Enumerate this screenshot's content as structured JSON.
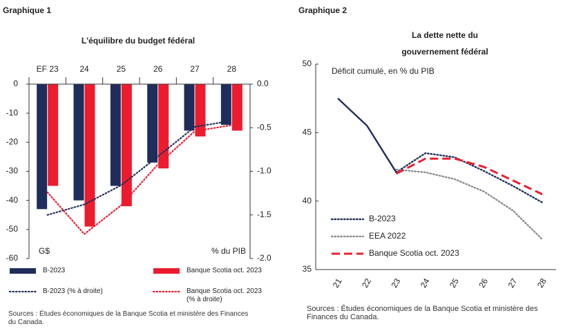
{
  "chart_data": [
    {
      "type": "bar",
      "label": "Graphique 1",
      "title": "L'équilibre du budget fédéral",
      "categories": [
        "EF 23",
        "24",
        "25",
        "26",
        "27",
        "28"
      ],
      "y_label": "G$",
      "y2_label": "% du PIB",
      "ylim": [
        -60,
        0
      ],
      "yticks": [
        0,
        -10,
        -20,
        -30,
        -40,
        -50,
        -60
      ],
      "y2lim": [
        -2,
        0
      ],
      "y2ticks": [
        {
          "value": 0,
          "label": "0.0"
        },
        -0.5,
        {
          "value": -1,
          "label": "-1.0"
        },
        -1.5,
        {
          "value": -2,
          "label": "-2.0"
        }
      ],
      "series": [
        {
          "name": "B-2023",
          "type": "bar",
          "color": "#1f2d5c",
          "values": [
            -43,
            -40,
            -35,
            -27,
            -16,
            -14
          ]
        },
        {
          "name": "Banque Scotia oct. 2023",
          "type": "bar",
          "color": "#ec1c2e",
          "values": [
            -35,
            -49,
            -42,
            -29,
            -18,
            -16
          ]
        },
        {
          "name": "B-2023 (% à droite)",
          "type": "line",
          "axis": "y2",
          "color": "#1f2d5c",
          "values": [
            -1.5,
            -1.38,
            -1.16,
            -0.83,
            -0.49,
            -0.42
          ]
        },
        {
          "name": "Banque Scotia oct. 2023 (% à droite)",
          "type": "line",
          "axis": "y2",
          "color": "#ec1c2e",
          "values": [
            -1.24,
            -1.72,
            -1.39,
            -0.92,
            -0.54,
            -0.47
          ]
        }
      ],
      "source": "Sources : Études économiques de la Banque Scotia et ministère des Finances du Canada."
    },
    {
      "type": "line",
      "label": "Graphique 2",
      "title": [
        "La dette nette du",
        "gouvernement fédéral"
      ],
      "subtitle": "Déficit cumulé, en % du PIB",
      "categories": [
        "21",
        "22",
        "23",
        "24",
        "25",
        "26",
        "27",
        "28"
      ],
      "ylim": [
        35,
        50
      ],
      "yticks": [
        35,
        40,
        45,
        50
      ],
      "series": [
        {
          "color": "#1f2d5c",
          "dash": "solid",
          "values": [
            47.5,
            45.5,
            42.1,
            null,
            null,
            null,
            null,
            null
          ]
        },
        {
          "name": "B-2023",
          "color": "#1f2d5c",
          "dash": "dotted",
          "values": [
            null,
            null,
            42.1,
            43.5,
            43.2,
            42.2,
            41.1,
            39.9
          ]
        },
        {
          "name": "EEA 2022",
          "color": "#8c8c8c",
          "dash": "dotted",
          "values": [
            null,
            null,
            42.3,
            42.1,
            41.6,
            40.7,
            39.3,
            37.2
          ]
        },
        {
          "name": "Banque Scotia oct. 2023",
          "color": "#ec1c2e",
          "dash": "dashed",
          "values": [
            null,
            null,
            42.0,
            43.1,
            43.1,
            42.5,
            41.5,
            40.5
          ]
        }
      ],
      "source": "Sources : Études économiques de la Banque Scotia et ministère des Finances du Canada."
    }
  ]
}
